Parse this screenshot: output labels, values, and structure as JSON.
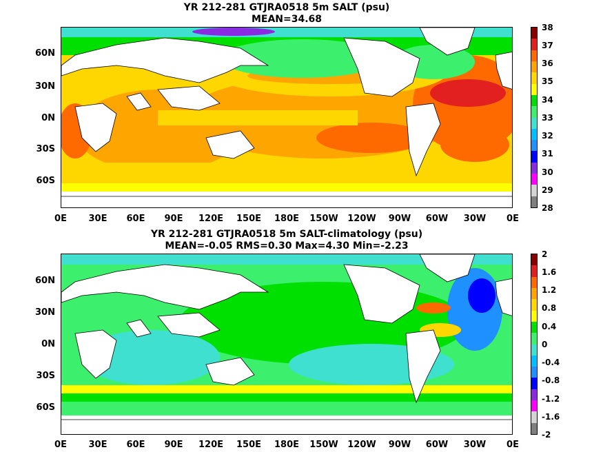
{
  "top": {
    "title": "YR 212-281 GTJRA0518 5m SALT (psu)",
    "subtitle": "MEAN=34.68",
    "colorbar_labels": [
      "38",
      "37",
      "36",
      "35",
      "34",
      "33",
      "32",
      "31",
      "30",
      "29",
      "28"
    ],
    "colorbar_colors": [
      "#8b0000",
      "#e22020",
      "#ff6a00",
      "#ffa500",
      "#ffd700",
      "#ffff00",
      "#00e000",
      "#3cf06e",
      "#40e0d0",
      "#00bfff",
      "#1e90ff",
      "#0000ff",
      "#8a2be2",
      "#ff00ff",
      "#d3d3d3",
      "#7f7f7f"
    ]
  },
  "bottom": {
    "title": "YR 212-281 GTJRA0518 5m SALT-climatology (psu)",
    "subtitle": "MEAN=-0.05   RMS=0.30   Max=4.30   Min=-2.23",
    "colorbar_labels": [
      "2",
      "1.6",
      "1.2",
      "0.8",
      "0.4",
      "0",
      "-0.4",
      "-0.8",
      "-1.2",
      "-1.6",
      "-2"
    ],
    "colorbar_colors": [
      "#8b0000",
      "#e22020",
      "#ff6a00",
      "#ffa500",
      "#ffd700",
      "#ffff00",
      "#00e000",
      "#3cf06e",
      "#40e0d0",
      "#00bfff",
      "#1e90ff",
      "#0000ff",
      "#8a2be2",
      "#ff00ff",
      "#d3d3d3",
      "#7f7f7f"
    ]
  },
  "lat_labels": [
    "60N",
    "30N",
    "0N",
    "30S",
    "60S"
  ],
  "lon_labels": [
    "0E",
    "30E",
    "60E",
    "90E",
    "120E",
    "150E",
    "180E",
    "150W",
    "120W",
    "90W",
    "60W",
    "30W",
    "0E"
  ]
}
